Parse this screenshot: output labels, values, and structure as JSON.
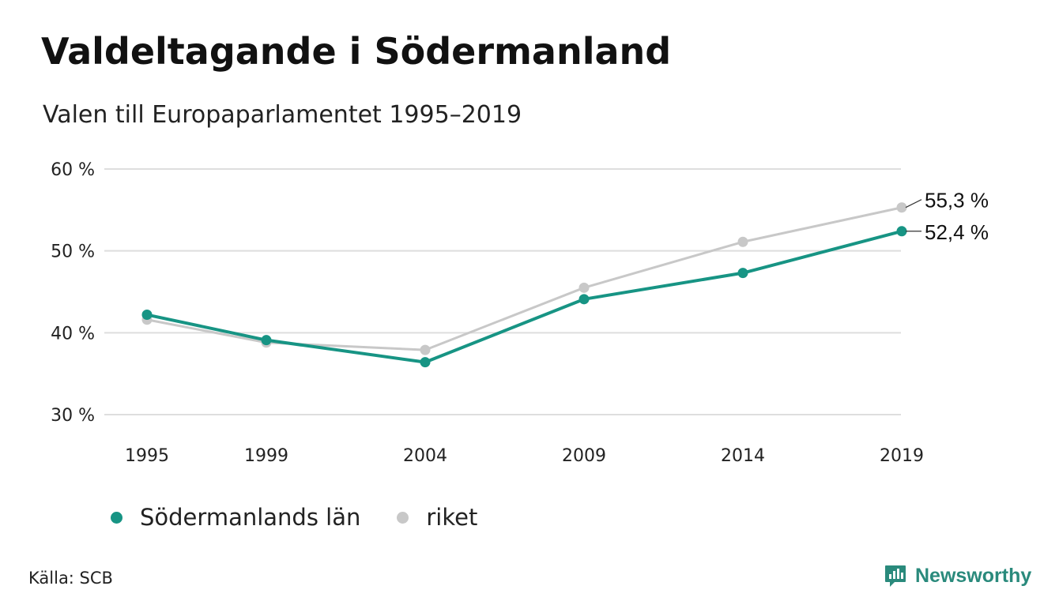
{
  "title": "Valdeltagande i Södermanland",
  "subtitle": "Valen till Europaparlamentet 1995–2019",
  "source": "Källa: SCB",
  "brand": {
    "name": "Newsworthy",
    "icon": "newsworthy-logo-icon",
    "color": "#2a8a7c"
  },
  "chart_data": {
    "type": "line",
    "categories": [
      "1995",
      "1999",
      "2004",
      "2009",
      "2014",
      "2019"
    ],
    "y_tick_labels": [
      "30 %",
      "40 %",
      "50 %",
      "60 %"
    ],
    "y_ticks": [
      30,
      40,
      50,
      60
    ],
    "ylim": [
      30,
      60
    ],
    "grid": true,
    "legend_position": "bottom-left",
    "series": [
      {
        "name": "riket",
        "color": "#c8c8c8",
        "values": [
          41.6,
          38.8,
          37.9,
          45.5,
          51.1,
          55.3
        ],
        "end_label": "55,3 %"
      },
      {
        "name": "Södermanlands län",
        "color": "#179484",
        "values": [
          42.2,
          39.1,
          36.4,
          44.1,
          47.3,
          52.4
        ],
        "end_label": "52,4 %"
      }
    ]
  }
}
